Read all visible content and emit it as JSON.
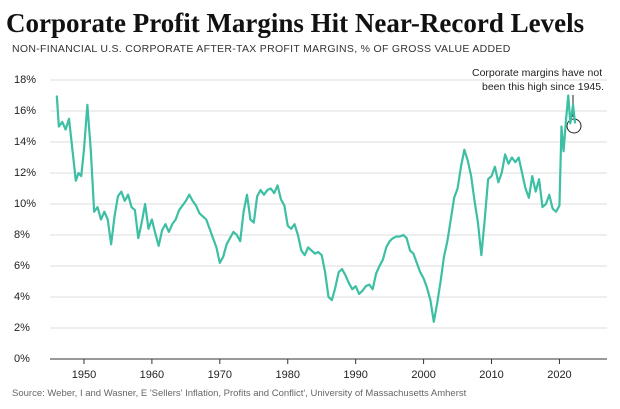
{
  "chart_data": {
    "type": "line",
    "title": "Corporate Profit Margins Hit Near-Record Levels",
    "subtitle": "NON-FINANCIAL U.S. CORPORATE AFTER-TAX PROFIT MARGINS, % OF GROSS VALUE ADDED",
    "annotation": [
      "Corporate margins have not",
      "been this high since 1945."
    ],
    "source": "Source: Weber, I and Wasner, E 'Sellers' Inflation, Profits and Conflict', University of Massachusetts Amherst",
    "x": [
      1946.0,
      1946.3,
      1946.8,
      1947.3,
      1947.8,
      1948.3,
      1948.8,
      1949.2,
      1949.6,
      1950.0,
      1950.5,
      1951.0,
      1951.5,
      1952.0,
      1952.5,
      1953.0,
      1953.5,
      1954.0,
      1954.5,
      1955.0,
      1955.5,
      1956.0,
      1956.5,
      1957.0,
      1957.5,
      1958.0,
      1958.5,
      1959.0,
      1959.5,
      1960.0,
      1960.5,
      1961.0,
      1961.5,
      1962.0,
      1962.5,
      1963.0,
      1963.5,
      1964.0,
      1964.5,
      1965.0,
      1965.5,
      1966.0,
      1966.5,
      1967.0,
      1967.5,
      1968.0,
      1968.5,
      1969.0,
      1969.5,
      1970.0,
      1970.5,
      1971.0,
      1971.5,
      1972.0,
      1972.5,
      1973.0,
      1973.5,
      1974.0,
      1974.5,
      1975.0,
      1975.5,
      1976.0,
      1976.5,
      1977.0,
      1977.5,
      1978.0,
      1978.5,
      1979.0,
      1979.5,
      1980.0,
      1980.5,
      1981.0,
      1981.5,
      1982.0,
      1982.5,
      1983.0,
      1983.5,
      1984.0,
      1984.5,
      1985.0,
      1985.5,
      1986.0,
      1986.5,
      1987.0,
      1987.5,
      1988.0,
      1988.5,
      1989.0,
      1989.5,
      1990.0,
      1990.5,
      1991.0,
      1991.5,
      1992.0,
      1992.5,
      1993.0,
      1993.5,
      1994.0,
      1994.5,
      1995.0,
      1995.5,
      1996.0,
      1996.5,
      1997.0,
      1997.5,
      1998.0,
      1998.5,
      1999.0,
      1999.5,
      2000.0,
      2000.5,
      2001.0,
      2001.5,
      2002.0,
      2002.5,
      2003.0,
      2003.5,
      2004.0,
      2004.5,
      2005.0,
      2005.5,
      2006.0,
      2006.5,
      2007.0,
      2007.5,
      2008.0,
      2008.5,
      2009.0,
      2009.5,
      2010.0,
      2010.5,
      2011.0,
      2011.5,
      2012.0,
      2012.5,
      2013.0,
      2013.5,
      2014.0,
      2014.5,
      2015.0,
      2015.5,
      2016.0,
      2016.5,
      2017.0,
      2017.5,
      2018.0,
      2018.5,
      2019.0,
      2019.5,
      2020.0,
      2020.3,
      2020.6,
      2021.0,
      2021.3,
      2021.6,
      2022.0,
      2022.3
    ],
    "series": [
      {
        "name": "After-tax profit margin",
        "color": "#3dbfa3",
        "values": [
          17.0,
          15.0,
          15.3,
          14.8,
          15.5,
          13.5,
          11.5,
          12.0,
          11.8,
          13.5,
          16.4,
          13.5,
          9.5,
          9.8,
          9.0,
          9.5,
          9.0,
          7.4,
          9.2,
          10.5,
          10.8,
          10.2,
          10.6,
          9.8,
          9.6,
          7.8,
          8.8,
          10.0,
          8.4,
          9.0,
          8.1,
          7.3,
          8.3,
          8.7,
          8.2,
          8.7,
          9.0,
          9.6,
          9.9,
          10.2,
          10.6,
          10.2,
          9.9,
          9.4,
          9.2,
          9.0,
          8.4,
          7.8,
          7.2,
          6.2,
          6.6,
          7.4,
          7.8,
          8.2,
          8.0,
          7.6,
          9.5,
          10.6,
          9.0,
          8.8,
          10.5,
          10.9,
          10.6,
          10.9,
          11.0,
          10.7,
          11.2,
          10.3,
          9.9,
          8.6,
          8.4,
          8.7,
          8.0,
          7.0,
          6.7,
          7.2,
          7.0,
          6.8,
          6.9,
          6.7,
          5.6,
          4.0,
          3.8,
          4.6,
          5.6,
          5.8,
          5.4,
          4.9,
          4.5,
          4.7,
          4.2,
          4.4,
          4.7,
          4.8,
          4.5,
          5.5,
          6.0,
          6.4,
          7.2,
          7.6,
          7.8,
          7.9,
          7.9,
          8.0,
          7.8,
          7.0,
          6.8,
          6.2,
          5.6,
          5.2,
          4.6,
          3.8,
          2.4,
          3.6,
          5.0,
          6.6,
          7.6,
          9.0,
          10.4,
          11.0,
          12.4,
          13.5,
          12.8,
          11.8,
          10.2,
          8.8,
          6.7,
          9.0,
          11.6,
          11.8,
          12.4,
          11.4,
          12.0,
          13.2,
          12.6,
          13.0,
          12.7,
          13.0,
          12.0,
          11.0,
          10.4,
          11.8,
          10.8,
          11.6,
          9.8,
          10.0,
          10.6,
          9.7,
          9.5,
          9.9,
          15.0,
          13.4,
          15.6,
          17.0,
          15.2,
          16.4,
          15.2
        ]
      }
    ],
    "xlim": [
      1945,
      2027
    ],
    "xticks": [
      1950,
      1960,
      1970,
      1980,
      1990,
      2000,
      2010,
      2020
    ],
    "ylim": [
      0,
      18
    ],
    "yticks": [
      {
        "value": 0,
        "label": "0%"
      },
      {
        "value": 2,
        "label": "2%"
      },
      {
        "value": 4,
        "label": "4%"
      },
      {
        "value": 6,
        "label": "6%"
      },
      {
        "value": 8,
        "label": "8%"
      },
      {
        "value": 10,
        "label": "10%"
      },
      {
        "value": 12,
        "label": "12%"
      },
      {
        "value": 14,
        "label": "14%"
      },
      {
        "value": 16,
        "label": "16%"
      },
      {
        "value": 18,
        "label": "18%"
      }
    ],
    "grid": true
  }
}
